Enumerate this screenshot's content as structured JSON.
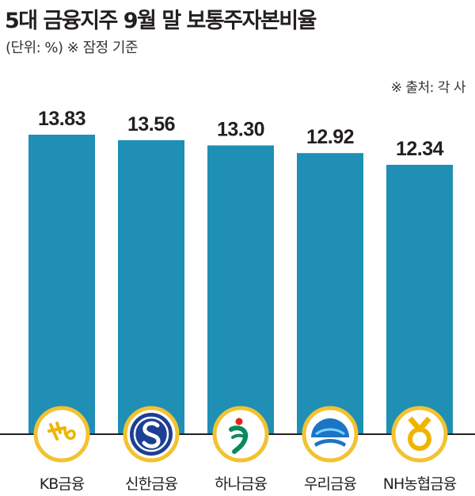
{
  "header": {
    "title": "5대 금융지주 9월 말 보통주자본비율",
    "subtitle": "(단위: %) ※ 잠정 기준",
    "source": "※ 출처: 각 사"
  },
  "colors": {
    "bar": "#1f8fb5",
    "baseline": "#231f20",
    "logo_ring": "#f2c230"
  },
  "chart_data": {
    "type": "bar",
    "title": "5대 금융지주 9월 말 보통주자본비율",
    "unit": "%",
    "categories": [
      "KB금융",
      "신한금융",
      "하나금융",
      "우리금융",
      "NH농협금융"
    ],
    "values": [
      13.83,
      13.56,
      13.3,
      12.92,
      12.34
    ],
    "value_labels": [
      "13.83",
      "13.56",
      "13.30",
      "12.92",
      "12.34"
    ],
    "logos": [
      "kb-logo-icon",
      "shinhan-logo-icon",
      "hana-logo-icon",
      "woori-logo-icon",
      "nh-logo-icon"
    ],
    "grid": false,
    "legend": "none"
  }
}
